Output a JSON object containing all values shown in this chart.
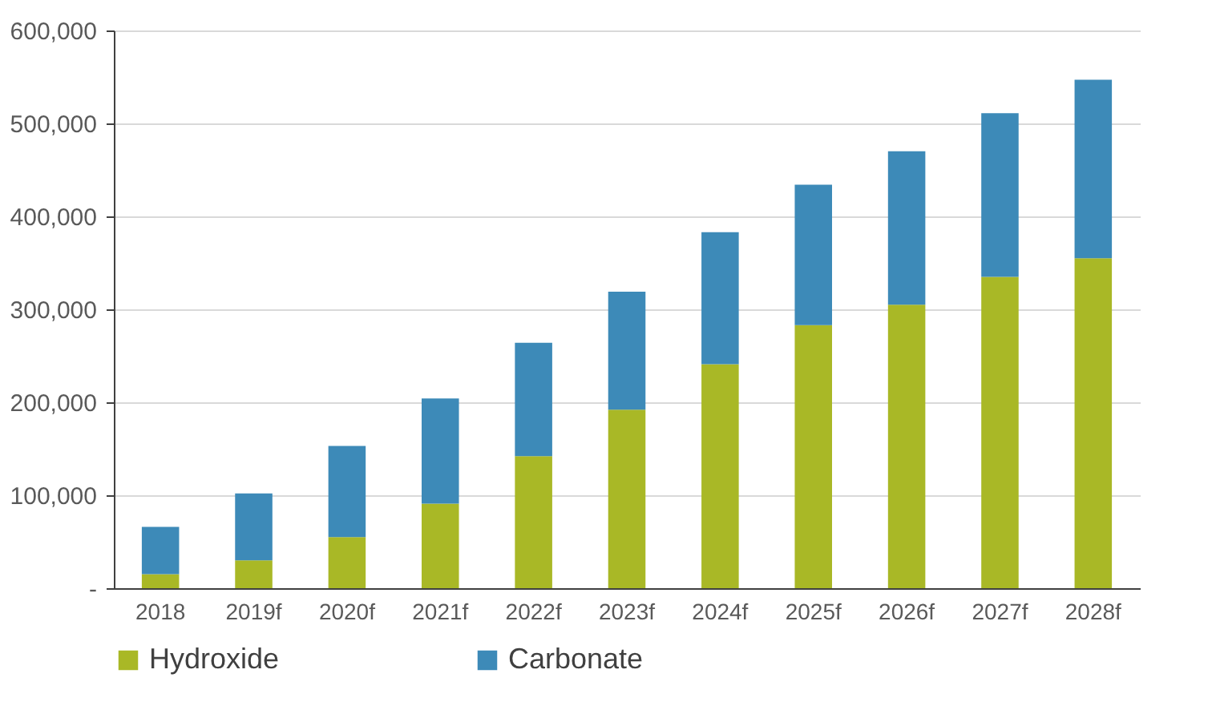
{
  "chart_data": {
    "type": "bar",
    "stacked": true,
    "categories": [
      "2018",
      "2019f",
      "2020f",
      "2021f",
      "2022f",
      "2023f",
      "2024f",
      "2025f",
      "2026f",
      "2027f",
      "2028f"
    ],
    "series": [
      {
        "name": "Hydroxide",
        "color": "#a9b826",
        "values": [
          15000,
          30000,
          55000,
          91000,
          142000,
          192000,
          241000,
          283000,
          305000,
          335000,
          355000
        ]
      },
      {
        "name": "Carbonate",
        "color": "#3d8ab8",
        "values": [
          51000,
          72000,
          98000,
          113000,
          122000,
          127000,
          142000,
          151000,
          165000,
          176000,
          192000
        ]
      }
    ],
    "ylim": [
      0,
      600000
    ],
    "yticks": [
      {
        "value": 0,
        "label": "-"
      },
      {
        "value": 100000,
        "label": "100,000"
      },
      {
        "value": 200000,
        "label": "200,000"
      },
      {
        "value": 300000,
        "label": "300,000"
      },
      {
        "value": 400000,
        "label": "400,000"
      },
      {
        "value": 500000,
        "label": "500,000"
      },
      {
        "value": 600000,
        "label": "600,000"
      }
    ],
    "grid": "y",
    "legend": "bottom"
  }
}
